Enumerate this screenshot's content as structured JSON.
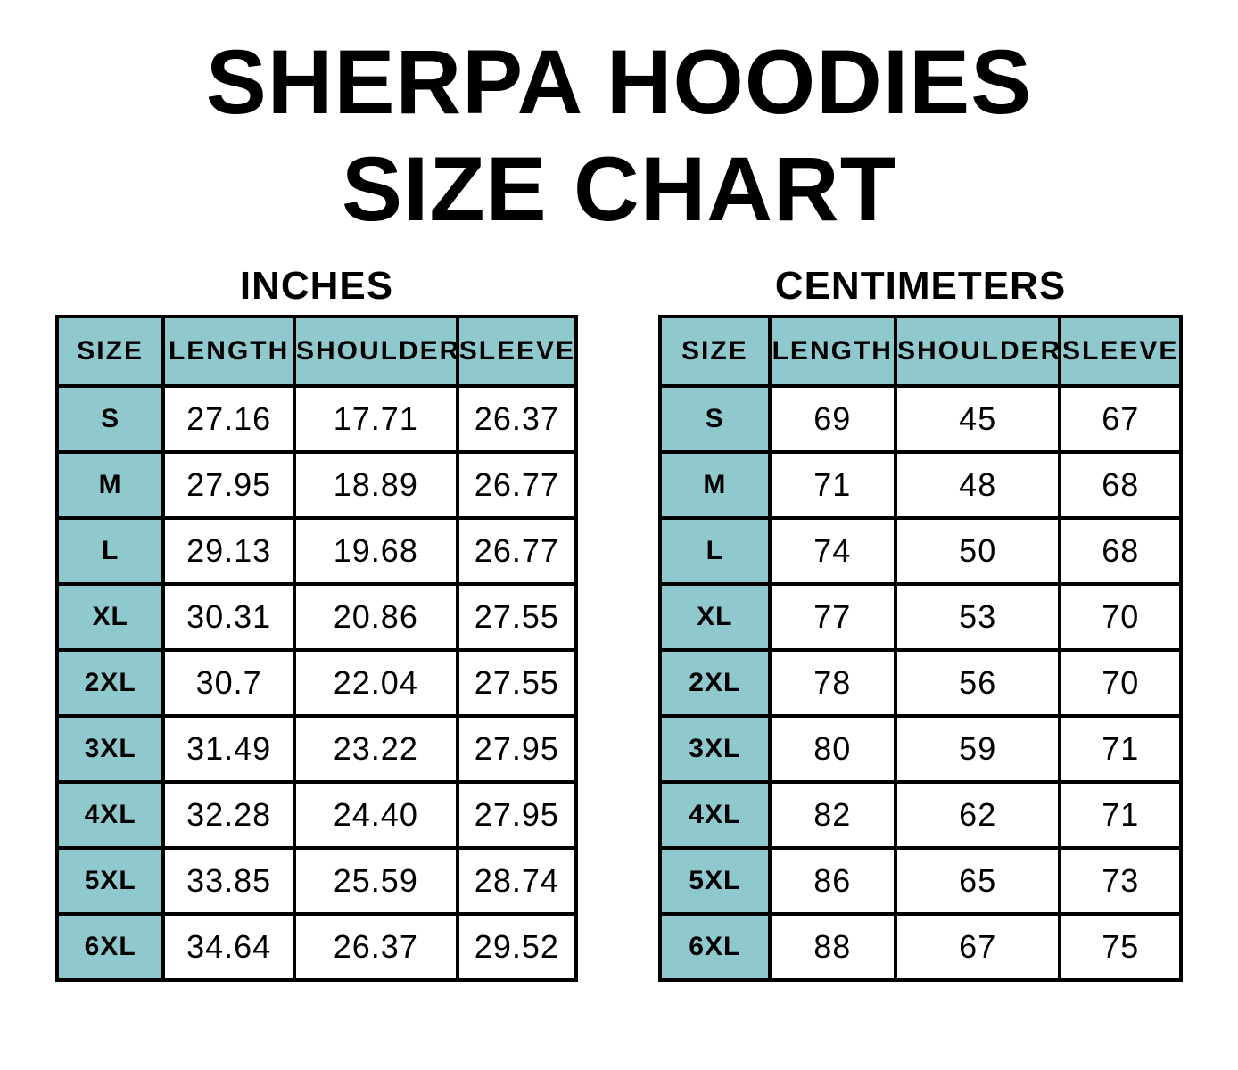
{
  "page_title": {
    "line1": "SHERPA HOODIES",
    "line2": "SIZE CHART"
  },
  "colors": {
    "header_bg": "#8FC8CD",
    "grid": "#000000",
    "background": "#FFFFFF",
    "text": "#000000"
  },
  "chart_data": [
    {
      "type": "table",
      "title": "INCHES",
      "columns": [
        "SIZE",
        "LENGTH",
        "SHOULDER",
        "SLEEVE"
      ],
      "rows": [
        [
          "S",
          "27.16",
          "17.71",
          "26.37"
        ],
        [
          "M",
          "27.95",
          "18.89",
          "26.77"
        ],
        [
          "L",
          "29.13",
          "19.68",
          "26.77"
        ],
        [
          "XL",
          "30.31",
          "20.86",
          "27.55"
        ],
        [
          "2XL",
          "30.7",
          "22.04",
          "27.55"
        ],
        [
          "3XL",
          "31.49",
          "23.22",
          "27.95"
        ],
        [
          "4XL",
          "32.28",
          "24.40",
          "27.95"
        ],
        [
          "5XL",
          "33.85",
          "25.59",
          "28.74"
        ],
        [
          "6XL",
          "34.64",
          "26.37",
          "29.52"
        ]
      ]
    },
    {
      "type": "table",
      "title": "CENTIMETERS",
      "columns": [
        "SIZE",
        "LENGTH",
        "SHOULDER",
        "SLEEVE"
      ],
      "rows": [
        [
          "S",
          "69",
          "45",
          "67"
        ],
        [
          "M",
          "71",
          "48",
          "68"
        ],
        [
          "L",
          "74",
          "50",
          "68"
        ],
        [
          "XL",
          "77",
          "53",
          "70"
        ],
        [
          "2XL",
          "78",
          "56",
          "70"
        ],
        [
          "3XL",
          "80",
          "59",
          "71"
        ],
        [
          "4XL",
          "82",
          "62",
          "71"
        ],
        [
          "5XL",
          "86",
          "65",
          "73"
        ],
        [
          "6XL",
          "88",
          "67",
          "75"
        ]
      ]
    }
  ]
}
